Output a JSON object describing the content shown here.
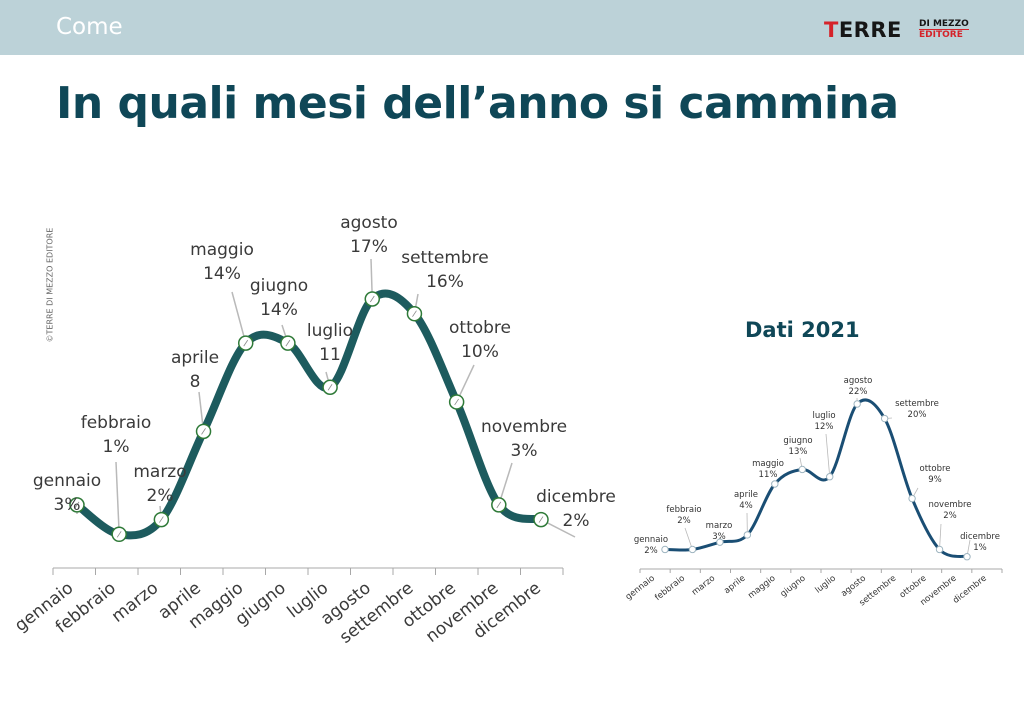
{
  "header": {
    "section": "Come",
    "logo_main_first": "T",
    "logo_main_rest": "ERRE",
    "logo_top": "DI MEZZO",
    "logo_bottom": "EDITORE"
  },
  "title": "In quali mesi dell’anno si cammina",
  "copyright": "©TERRE DI MEZZO EDITORE",
  "colors": {
    "header_bg": "#bcd2d8",
    "title": "#0f4757",
    "main_line": "#1d5b5e",
    "small_line": "#1a4e74",
    "brand_red": "#d5232a"
  },
  "chart_data": [
    {
      "type": "line",
      "categories": [
        "gennaio",
        "febbraio",
        "marzo",
        "aprile",
        "maggio",
        "giugno",
        "luglio",
        "agosto",
        "settembre",
        "ottobre",
        "novembre",
        "dicembre"
      ],
      "values": [
        3,
        1,
        2,
        8,
        14,
        14,
        11,
        17,
        16,
        10,
        3,
        2
      ],
      "point_labels": [
        "3%",
        "1%",
        "2%",
        "8",
        "14%",
        "14%",
        "11",
        "17%",
        "16%",
        "10%",
        "3%",
        "2%"
      ],
      "title": "",
      "xlabel": "",
      "ylabel": "",
      "grid": false
    },
    {
      "type": "line",
      "categories": [
        "gennaio",
        "febbraio",
        "marzo",
        "aprile",
        "maggio",
        "giugno",
        "luglio",
        "agosto",
        "settembre",
        "ottobre",
        "novembre",
        "dicembre"
      ],
      "values": [
        2,
        2,
        3,
        4,
        11,
        13,
        12,
        22,
        20,
        9,
        2,
        1
      ],
      "point_labels": [
        "2%",
        "2%",
        "3%",
        "4%",
        "11%",
        "13%",
        "12%",
        "22%",
        "20%",
        "9%",
        "2%",
        "1%"
      ],
      "title": "Dati 2021",
      "xlabel": "",
      "ylabel": "",
      "grid": false
    }
  ]
}
